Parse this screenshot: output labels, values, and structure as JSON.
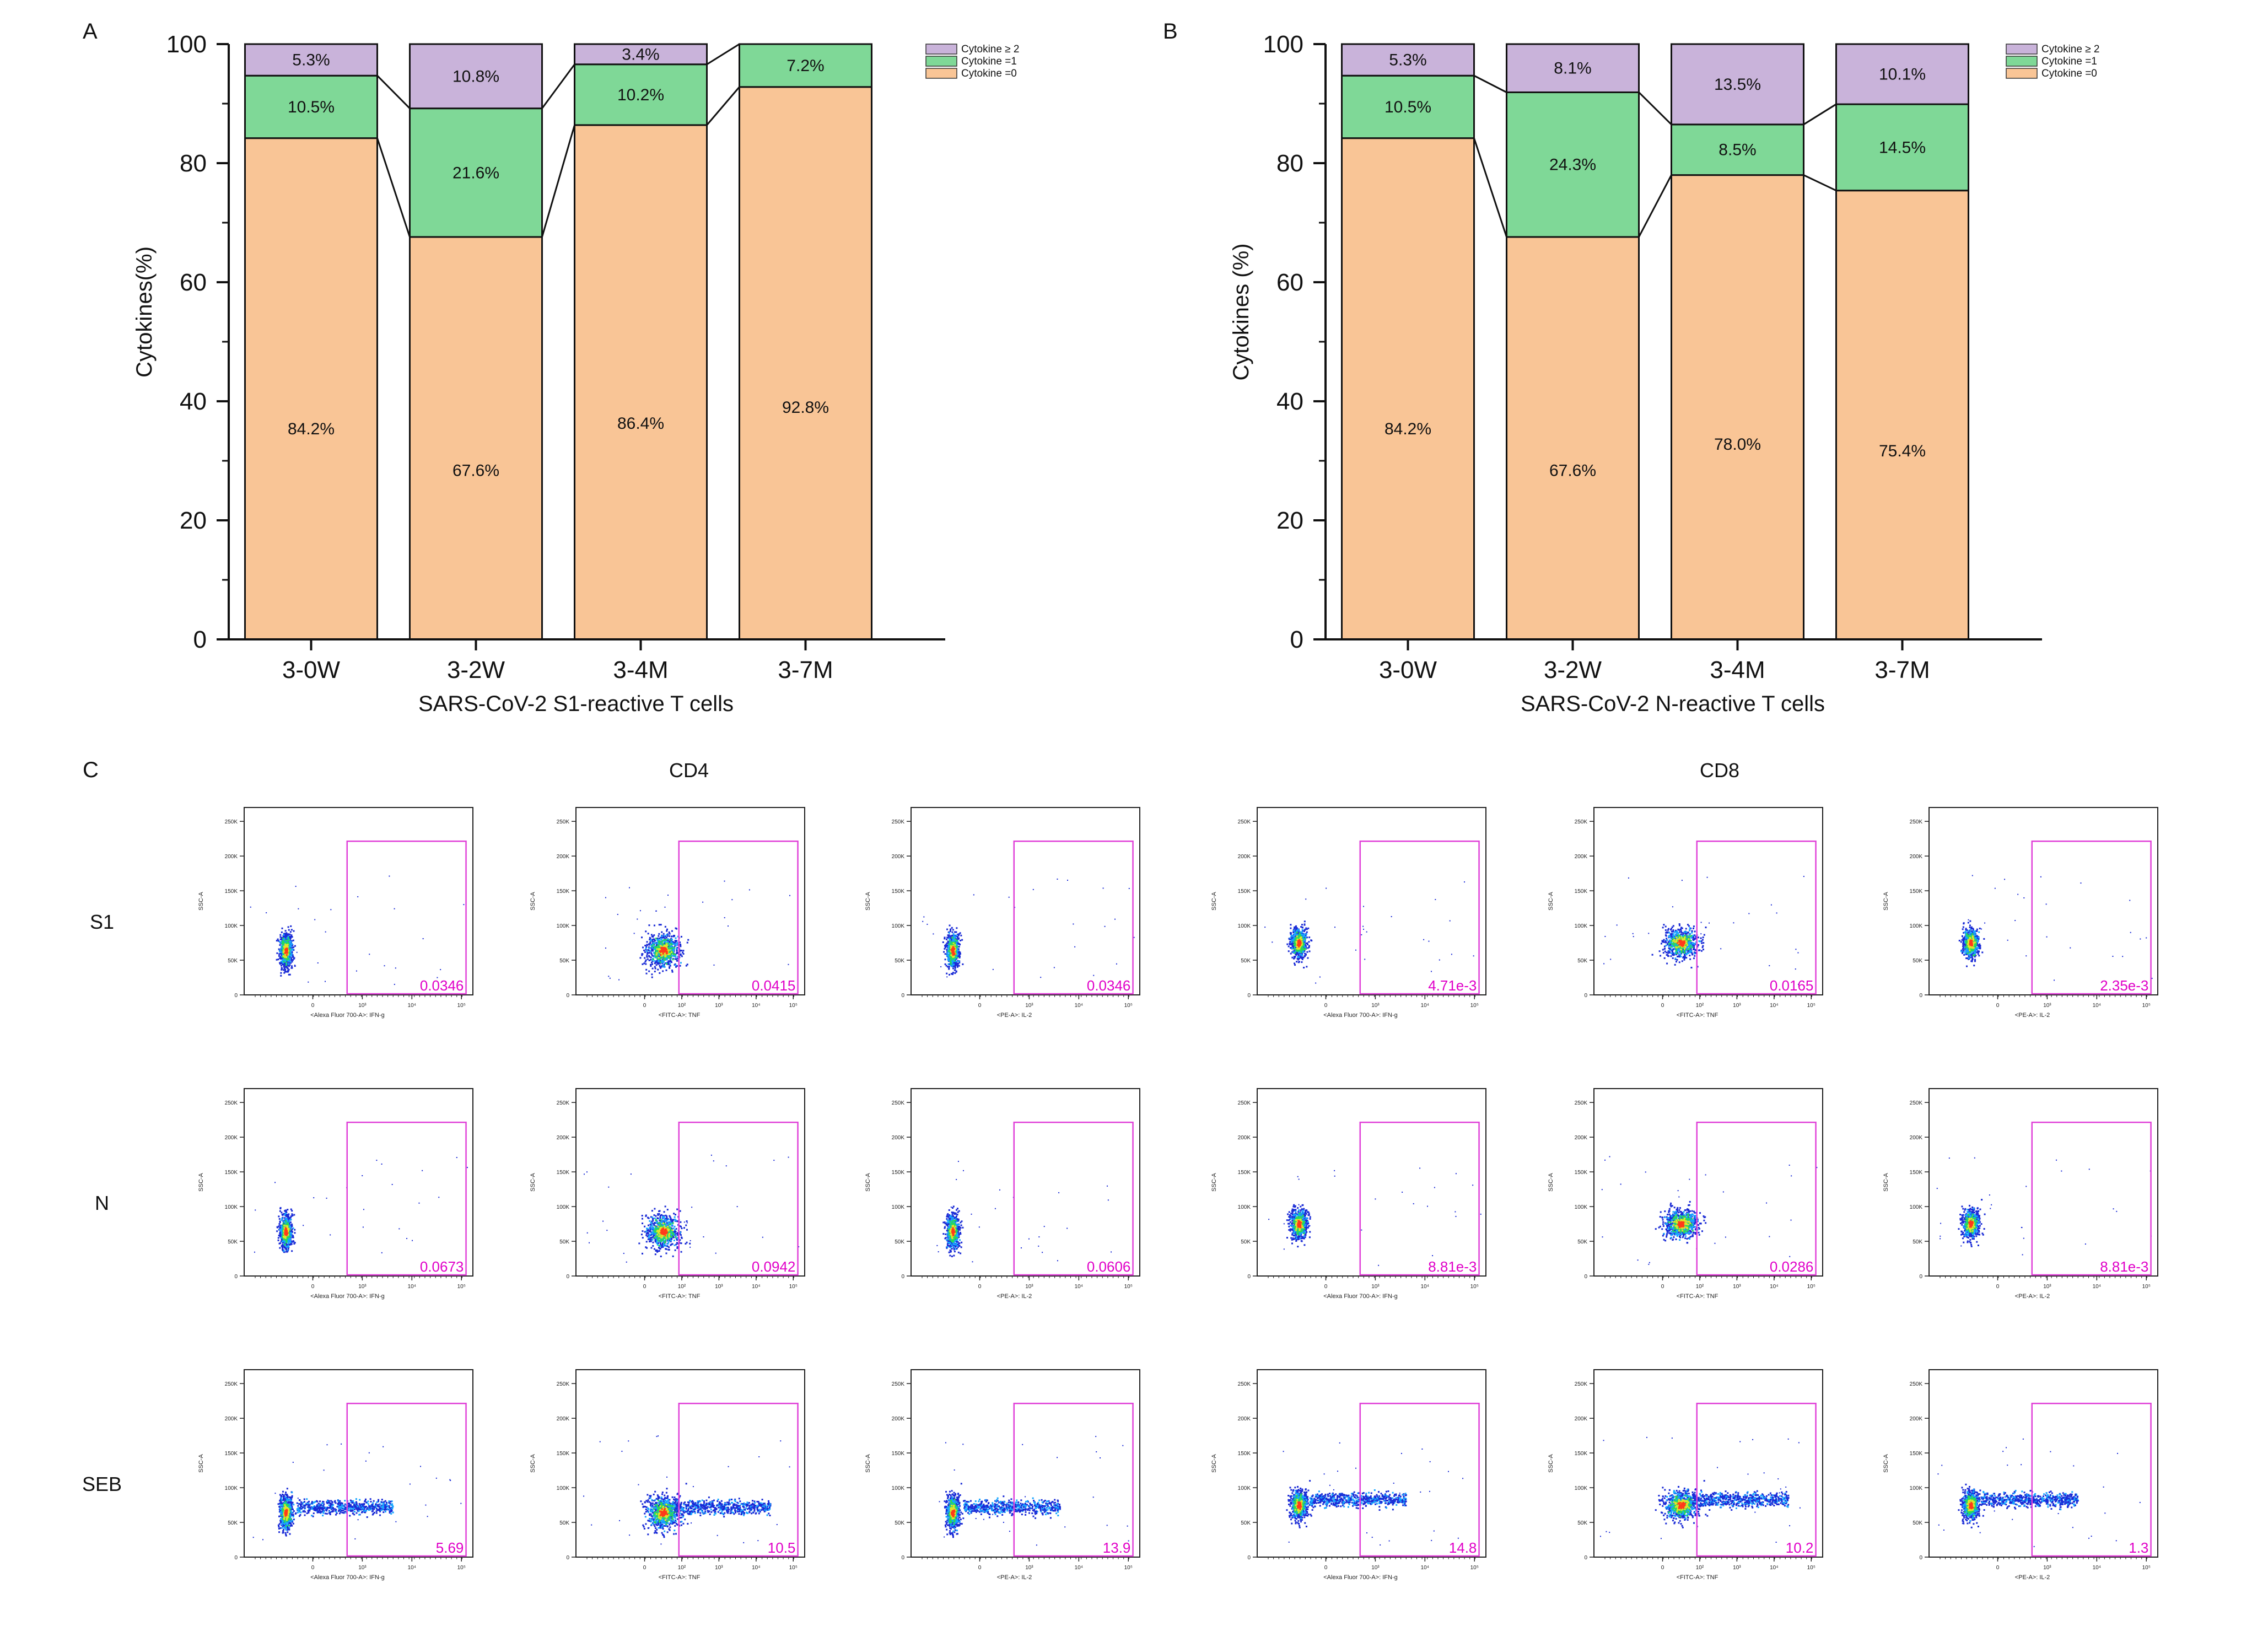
{
  "colors": {
    "cyt0": "#F9C596",
    "cyt1": "#7FD897",
    "cyt2": "#C9B3DA",
    "gate": "#E040D8",
    "gate_text": "#E000C8"
  },
  "chart_data": [
    {
      "panel": "A",
      "type": "bar",
      "stacked": true,
      "title": "",
      "xlabel": "SARS-CoV-2 S1-reactive T cells",
      "ylabel": "Cytokines(%)",
      "ylim": [
        0,
        100
      ],
      "yticks": [
        "0",
        "20",
        "40",
        "60",
        "80",
        "100"
      ],
      "categories": [
        "3-0W",
        "3-2W",
        "3-4M",
        "3-7M"
      ],
      "legend": [
        "Cytokine ≥ 2",
        "Cytokine =1",
        "Cytokine =0"
      ],
      "legend_position": "top-right",
      "series": [
        {
          "name": "Cytokine =0",
          "color_key": "cyt0",
          "values": [
            84.2,
            67.6,
            86.4,
            92.8
          ],
          "labels": [
            "84.2%",
            "67.6%",
            "86.4%",
            "92.8%"
          ]
        },
        {
          "name": "Cytokine =1",
          "color_key": "cyt1",
          "values": [
            10.5,
            21.6,
            10.2,
            7.2
          ],
          "labels": [
            "10.5%",
            "21.6%",
            "10.2%",
            "7.2%"
          ]
        },
        {
          "name": "Cytokine ≥ 2",
          "color_key": "cyt2",
          "values": [
            5.3,
            10.8,
            3.4,
            0
          ],
          "labels": [
            "5.3%",
            "10.8%",
            "3.4%",
            ""
          ]
        }
      ]
    },
    {
      "panel": "B",
      "type": "bar",
      "stacked": true,
      "title": "",
      "xlabel": "SARS-CoV-2 N-reactive T cells",
      "ylabel": "Cytokines (%)",
      "ylim": [
        0,
        100
      ],
      "yticks": [
        "0",
        "20",
        "40",
        "60",
        "80",
        "100"
      ],
      "categories": [
        "3-0W",
        "3-2W",
        "3-4M",
        "3-7M"
      ],
      "legend": [
        "Cytokine ≥ 2",
        "Cytokine =1",
        "Cytokine =0"
      ],
      "legend_position": "top-right",
      "series": [
        {
          "name": "Cytokine =0",
          "color_key": "cyt0",
          "values": [
            84.2,
            67.6,
            78.0,
            75.4
          ],
          "labels": [
            "84.2%",
            "67.6%",
            "78.0%",
            "75.4%"
          ]
        },
        {
          "name": "Cytokine =1",
          "color_key": "cyt1",
          "values": [
            10.5,
            24.3,
            8.5,
            14.5
          ],
          "labels": [
            "10.5%",
            "24.3%",
            "8.5%",
            "14.5%"
          ]
        },
        {
          "name": "Cytokine ≥ 2",
          "color_key": "cyt2",
          "values": [
            5.3,
            8.1,
            13.5,
            10.1
          ],
          "labels": [
            "5.3%",
            "8.1%",
            "13.5%",
            "10.1%"
          ]
        }
      ]
    },
    {
      "panel": "C",
      "type": "scatter",
      "title": "",
      "groups": [
        "CD4",
        "CD8"
      ],
      "rows": [
        "S1",
        "N",
        "SEB"
      ],
      "y_axis_label": "SSC-A",
      "y_ticks": [
        "0",
        "50K",
        "100K",
        "150K",
        "200K",
        "250K"
      ],
      "columns": [
        {
          "group": "CD4",
          "x_label": "<Alexa Fluor 700-A>: IFN-g",
          "x_ticks": [
            "0",
            "10³",
            "10⁴",
            "10⁵"
          ]
        },
        {
          "group": "CD4",
          "x_label": "<FITC-A>: TNF",
          "x_ticks": [
            "0",
            "10²",
            "10³",
            "10⁴",
            "10⁵"
          ]
        },
        {
          "group": "CD4",
          "x_label": "<PE-A>: IL-2",
          "x_ticks": [
            "0",
            "10³",
            "10⁴",
            "10⁵"
          ]
        },
        {
          "group": "CD8",
          "x_label": "<Alexa Fluor 700-A>: IFN-g",
          "x_ticks": [
            "0",
            "10³",
            "10⁴",
            "10⁵"
          ]
        },
        {
          "group": "CD8",
          "x_label": "<FITC-A>: TNF",
          "x_ticks": [
            "0",
            "10²",
            "10³",
            "10⁴",
            "10⁵"
          ]
        },
        {
          "group": "CD8",
          "x_label": "<PE-A>: IL-2",
          "x_ticks": [
            "0",
            "10³",
            "10⁴",
            "10⁵"
          ]
        }
      ],
      "gate_values": [
        [
          "0.0346",
          "0.0415",
          "0.0346",
          "4.71e-3",
          "0.0165",
          "2.35e-3"
        ],
        [
          "0.0673",
          "0.0942",
          "0.0606",
          "8.81e-3",
          "0.0286",
          "8.81e-3"
        ],
        [
          "5.69",
          "10.5",
          "13.9",
          "14.8",
          "10.2",
          "1.3"
        ]
      ]
    }
  ]
}
